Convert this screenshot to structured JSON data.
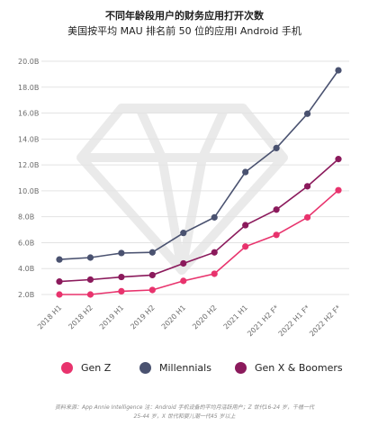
{
  "header": {
    "title": "不同年龄段用户的财务应用打开次数",
    "subtitle": "美国按平均 MAU 排名前 50 位的应用I Android 手机"
  },
  "chart_data": {
    "type": "line",
    "categories": [
      "2018 H1",
      "2018 H2",
      "2019 H1",
      "2019 H2",
      "2020 H1",
      "2020 H2",
      "2021 H1",
      "2021 H2 F",
      "2022 H1 F",
      "2022 H2 F"
    ],
    "category_labels": [
      "2018 H1",
      "2018 H2",
      "2019 H1",
      "2019 H2",
      "2020 H1",
      "2020 H2",
      "2021 H1",
      "2021 H2 F*",
      "2022 H1 F*",
      "2022 H2 F*"
    ],
    "y_ticks": [
      "2.0B",
      "4.0B",
      "6.0B",
      "8.0B",
      "10.0B",
      "12.0B",
      "14.0B",
      "16.0B",
      "18.0B",
      "20.0B"
    ],
    "ylim": [
      2.0,
      20.0
    ],
    "grid": true,
    "legend_position": "bottom",
    "series": [
      {
        "name": "Gen Z",
        "color": "#e8336d",
        "values": [
          2.0,
          2.0,
          2.25,
          2.35,
          3.05,
          3.6,
          5.7,
          6.6,
          7.95,
          10.05
        ]
      },
      {
        "name": "Millennials",
        "color": "#4a5270",
        "values": [
          4.7,
          4.85,
          5.2,
          5.25,
          6.75,
          7.95,
          11.45,
          13.3,
          15.95,
          19.3
        ]
      },
      {
        "name": "Gen X & Boomers",
        "color": "#8b1a5c",
        "values": [
          3.0,
          3.15,
          3.35,
          3.5,
          4.4,
          5.25,
          7.35,
          8.55,
          10.35,
          12.45
        ]
      }
    ]
  },
  "footer": {
    "source_line1": "资料来源：App Annie Intelligence 注：Android 手机设备的平均月活跃用户；Z 世代16-24 岁，千禧一代",
    "source_line2": "25-44 岁，X 世代和婴儿潮一代45 岁以上"
  }
}
